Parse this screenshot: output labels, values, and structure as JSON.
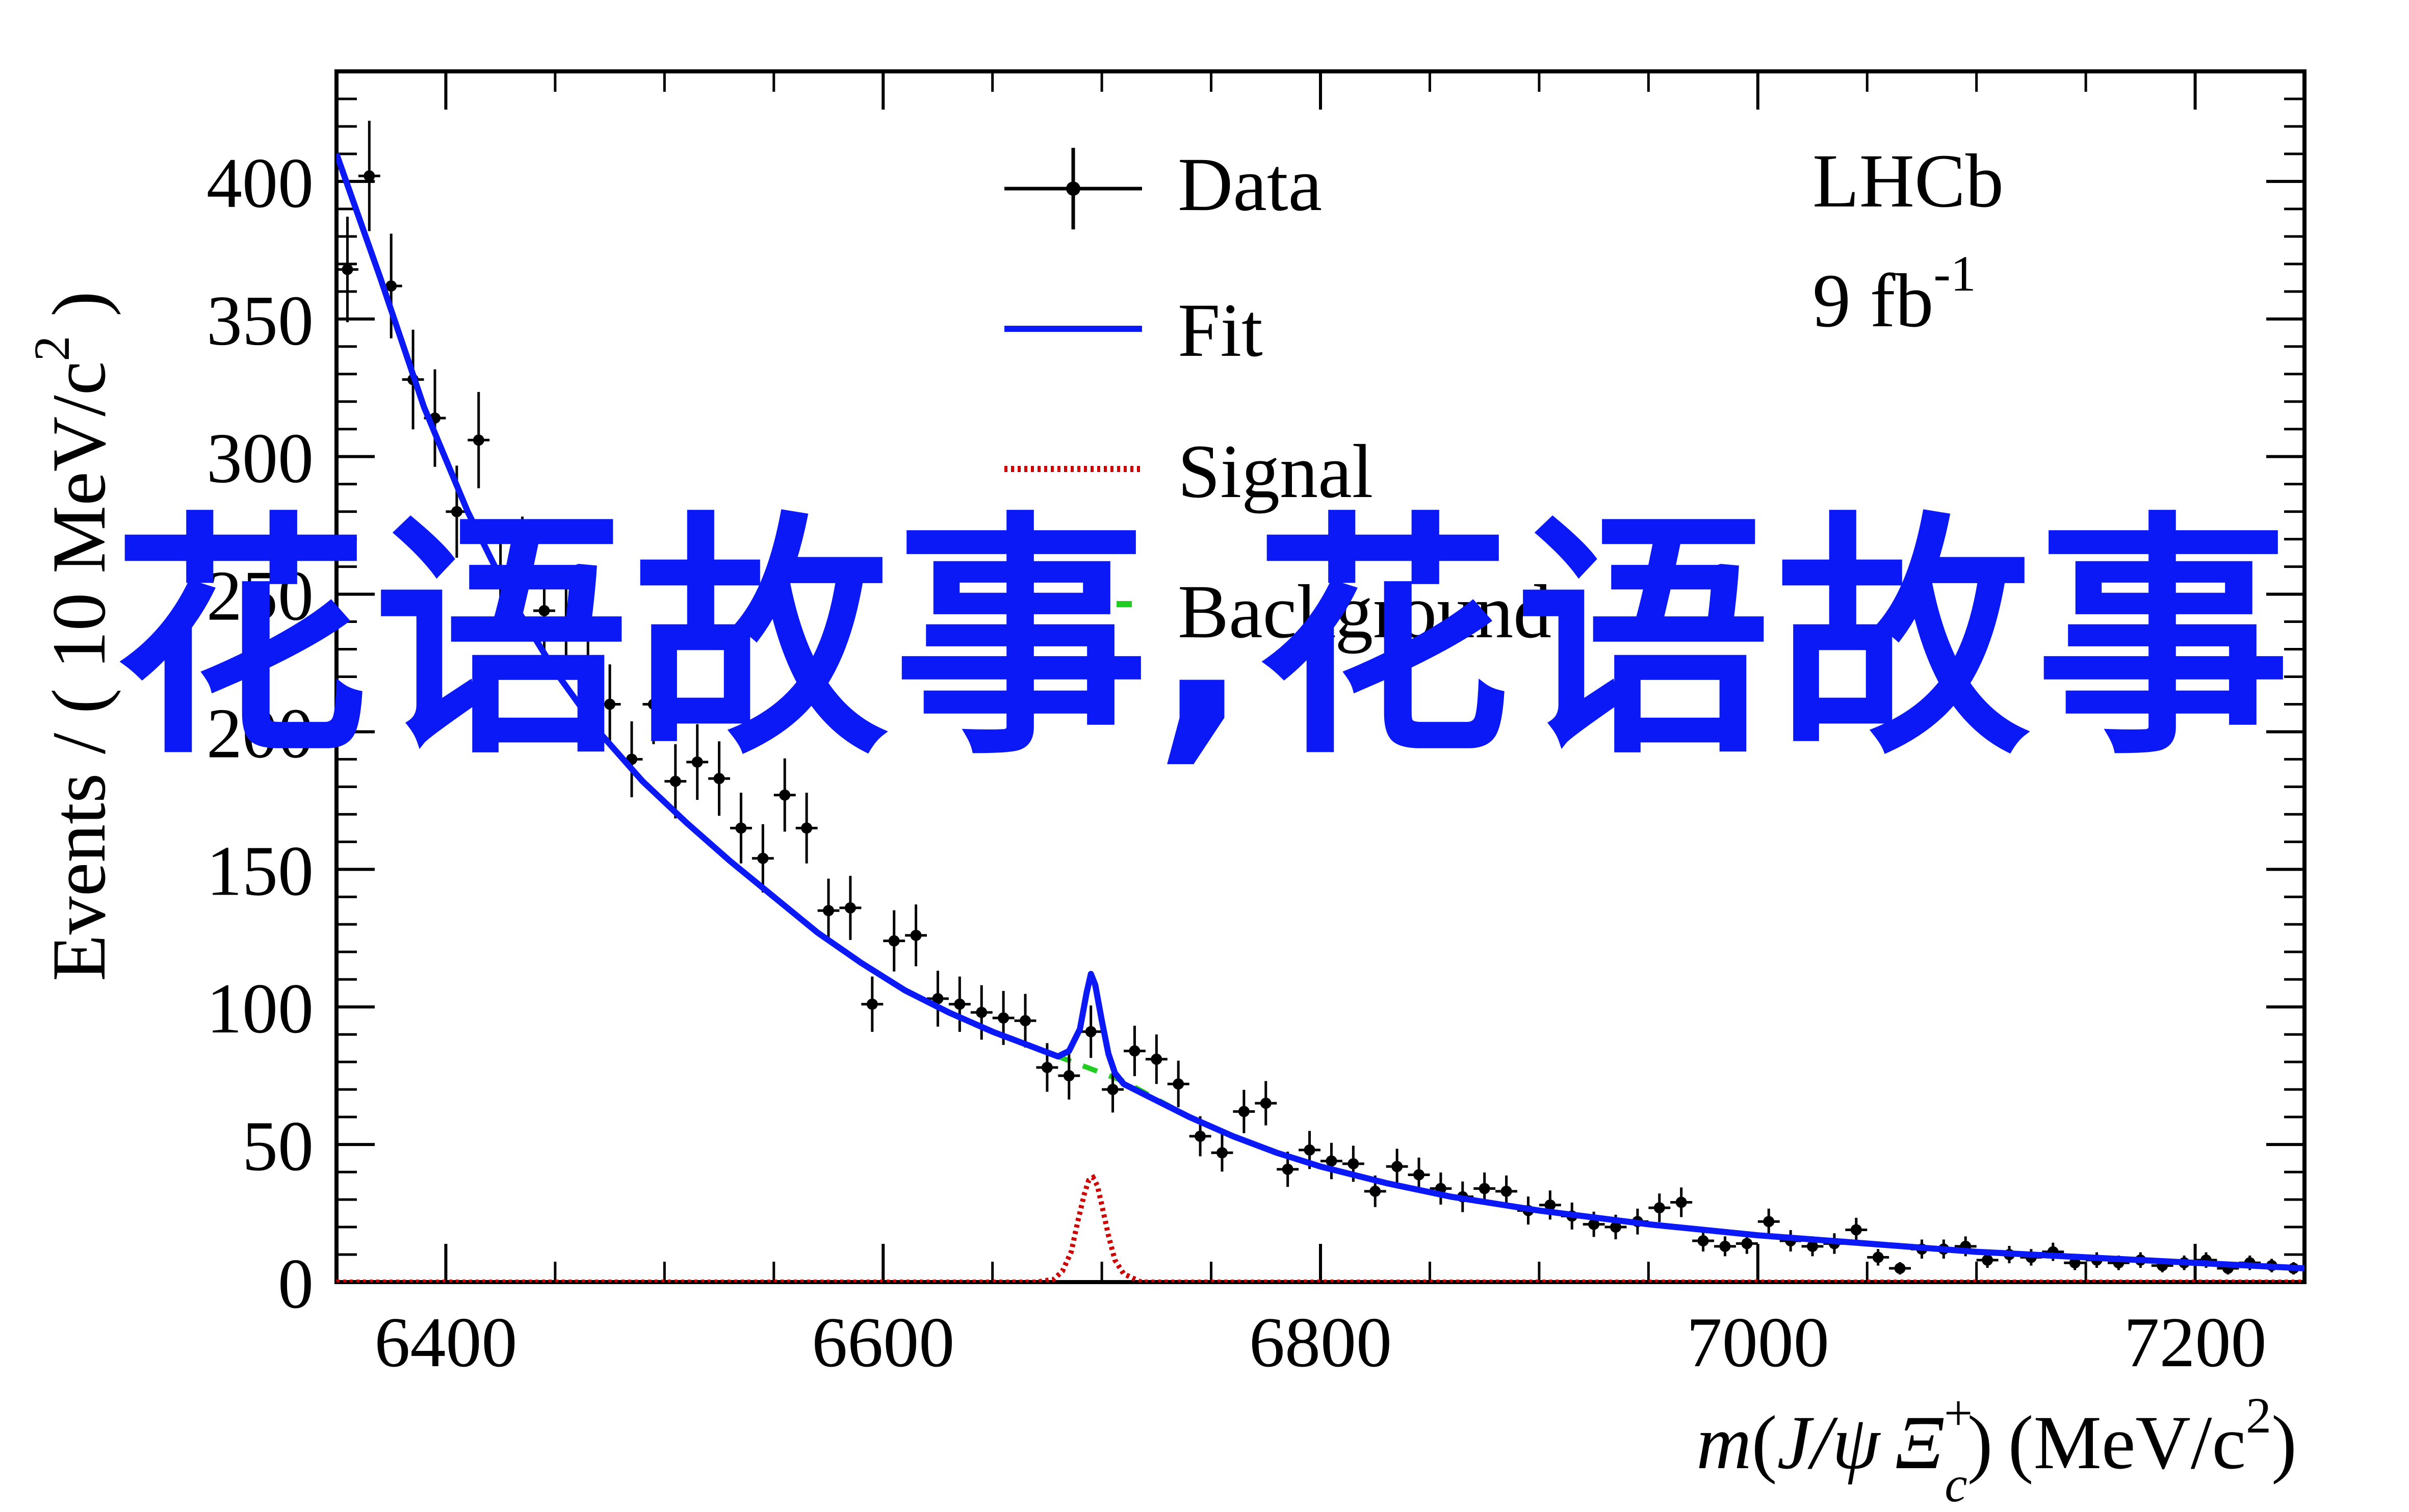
{
  "chart_data": {
    "type": "scatter",
    "experiment_label": "LHCb",
    "luminosity_label": "9 fb",
    "luminosity_exponent": "-1",
    "xlabel": {
      "m": "m",
      "open_paren": "(",
      "jpsi": "J/ψ",
      "xi": "Ξ",
      "xi_sup": "+",
      "xi_sub": "c",
      "close_paren": ")",
      "units": "(MeV/c",
      "units_sup": "2",
      "units_close": ")"
    },
    "ylabel": {
      "text": "Events / ( 10 MeV/c",
      "sup": "2",
      "close": " )"
    },
    "xlim": [
      6350,
      7250
    ],
    "ylim": [
      0,
      440
    ],
    "xticks": [
      "6400",
      "6600",
      "6800",
      "7000",
      "7200"
    ],
    "yticks": [
      "0",
      "50",
      "100",
      "150",
      "200",
      "250",
      "300",
      "350",
      "400"
    ],
    "legend": {
      "position": "top-center",
      "entries": [
        "Data",
        "Fit",
        "Signal",
        "Background"
      ]
    },
    "series": [
      {
        "name": "Data",
        "style": "points-with-errors",
        "color": "#000000",
        "x": [
          6355,
          6365,
          6375,
          6385,
          6395,
          6405,
          6415,
          6425,
          6435,
          6445,
          6455,
          6465,
          6475,
          6485,
          6495,
          6505,
          6515,
          6525,
          6535,
          6545,
          6555,
          6565,
          6575,
          6585,
          6595,
          6605,
          6615,
          6625,
          6635,
          6645,
          6655,
          6665,
          6675,
          6685,
          6695,
          6705,
          6715,
          6725,
          6735,
          6745,
          6755,
          6765,
          6775,
          6785,
          6795,
          6805,
          6815,
          6825,
          6835,
          6845,
          6855,
          6865,
          6875,
          6885,
          6895,
          6905,
          6915,
          6925,
          6935,
          6945,
          6955,
          6965,
          6975,
          6985,
          6995,
          7005,
          7015,
          7025,
          7035,
          7045,
          7055,
          7065,
          7075,
          7085,
          7095,
          7105,
          7115,
          7125,
          7135,
          7145,
          7155,
          7165,
          7175,
          7185,
          7195,
          7205,
          7215,
          7225,
          7235,
          7245
        ],
        "values": [
          368,
          402,
          362,
          328,
          314,
          280,
          306,
          258,
          262,
          244,
          237,
          225,
          210,
          190,
          210,
          182,
          189,
          183,
          165,
          154,
          177,
          165,
          135,
          136,
          101,
          124,
          126,
          103,
          101,
          98,
          96,
          95,
          78,
          75,
          91,
          70,
          84,
          81,
          72,
          53,
          47,
          62,
          65,
          41,
          48,
          44,
          43,
          33,
          42,
          39,
          34,
          31,
          34,
          33,
          26,
          28,
          24,
          21,
          20,
          22,
          27,
          29,
          15,
          13,
          14,
          22,
          15,
          13,
          14,
          19,
          9,
          5,
          12,
          12,
          13,
          8,
          10,
          9,
          11,
          7,
          8,
          7,
          8,
          6,
          7,
          8,
          5,
          7,
          6,
          5
        ]
      },
      {
        "name": "Fit",
        "style": "line",
        "color": "#0a19f5",
        "x": [
          6350,
          6370,
          6390,
          6410,
          6430,
          6450,
          6470,
          6490,
          6510,
          6530,
          6550,
          6570,
          6590,
          6610,
          6630,
          6650,
          6670,
          6680,
          6685,
          6690,
          6693,
          6695,
          6697,
          6700,
          6703,
          6706,
          6710,
          6720,
          6740,
          6760,
          6780,
          6800,
          6830,
          6860,
          6900,
          6950,
          7000,
          7050,
          7100,
          7150,
          7200,
          7250
        ],
        "values": [
          410,
          365,
          318,
          280,
          248,
          222,
          200,
          182,
          167,
          153,
          140,
          127,
          116,
          106,
          98,
          91,
          85,
          82,
          84,
          92,
          105,
          112,
          108,
          95,
          83,
          76,
          72,
          68,
          60,
          53,
          47,
          42,
          36,
          31,
          26,
          21,
          17,
          14,
          11,
          9,
          7,
          5
        ]
      },
      {
        "name": "Signal",
        "style": "dotted-line",
        "color": "#cc0000",
        "x": [
          6350,
          6670,
          6678,
          6682,
          6686,
          6689,
          6692,
          6694,
          6696,
          6698,
          6700,
          6703,
          6706,
          6710,
          6718,
          7250
        ],
        "values": [
          0,
          0,
          1,
          4,
          11,
          22,
          32,
          37,
          38,
          35,
          28,
          17,
          8,
          3,
          0,
          0
        ]
      },
      {
        "name": "Background",
        "style": "dashed-line",
        "color": "#22cc22",
        "x": [
          6350,
          6370,
          6390,
          6410,
          6430,
          6450,
          6470,
          6490,
          6510,
          6530,
          6550,
          6570,
          6590,
          6610,
          6630,
          6650,
          6670,
          6690,
          6710,
          6740,
          6760,
          6780,
          6800,
          6830,
          6860,
          6900,
          6950,
          7000,
          7050,
          7100,
          7150,
          7200,
          7250
        ],
        "values": [
          410,
          365,
          318,
          280,
          248,
          222,
          200,
          182,
          167,
          153,
          140,
          127,
          116,
          106,
          98,
          91,
          85,
          79,
          73,
          60,
          53,
          47,
          42,
          36,
          31,
          26,
          21,
          17,
          14,
          11,
          9,
          7,
          5
        ]
      }
    ],
    "grid": false,
    "colors": {
      "data": "#000000",
      "fit": "#0a19f5",
      "signal": "#cc0000",
      "background": "#22cc22",
      "watermark": "#0a19f5"
    }
  },
  "watermark": {
    "text": "花语故事,花语故事"
  }
}
